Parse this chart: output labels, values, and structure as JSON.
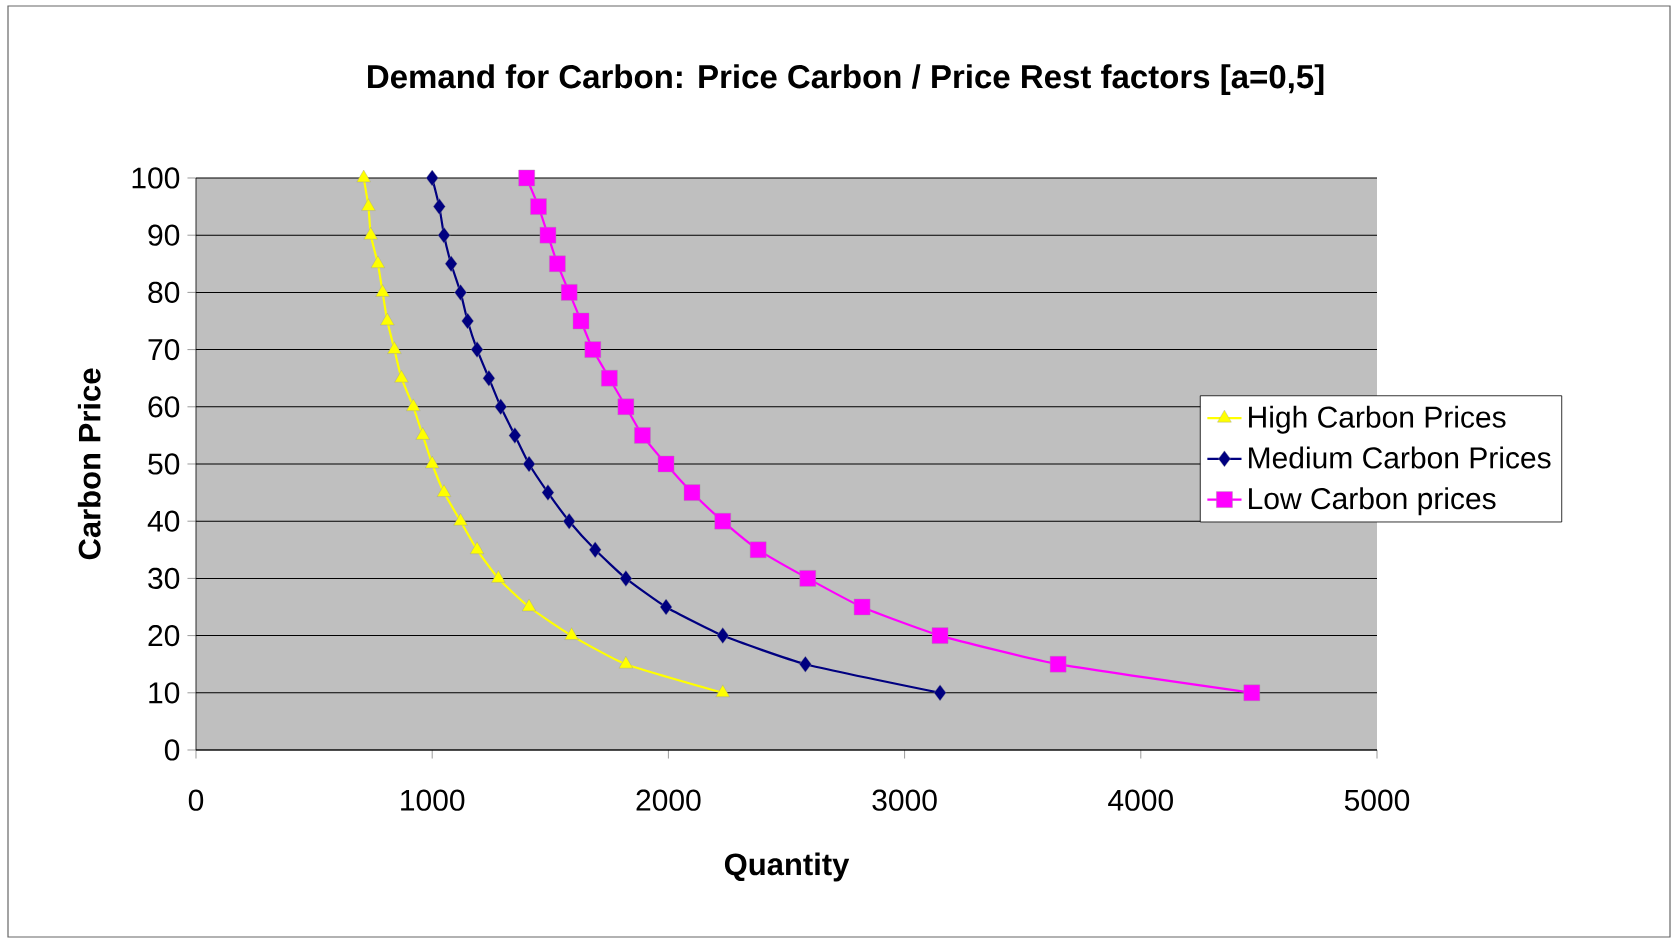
{
  "chart_data": {
    "type": "line",
    "title": "Demand for Carbon: Price Carbon / Price Rest factors [a=0,5]",
    "xlabel": "Quantity",
    "ylabel": "Carbon Price",
    "xlim": [
      0,
      5000
    ],
    "xticks": [
      0,
      1000,
      2000,
      3000,
      4000,
      5000
    ],
    "ylim": [
      0,
      100
    ],
    "yticks": [
      0,
      10,
      20,
      30,
      40,
      50,
      60,
      70,
      80,
      90,
      100
    ],
    "grid": "y",
    "legend": "right",
    "series": [
      {
        "name": "High Carbon Prices",
        "color": "#ffff00",
        "marker": "triangle",
        "x": [
          710,
          730,
          740,
          770,
          790,
          810,
          840,
          870,
          920,
          960,
          1000,
          1050,
          1120,
          1190,
          1280,
          1410,
          1590,
          1820,
          2230
        ],
        "values": [
          100,
          95,
          90,
          85,
          80,
          75,
          70,
          65,
          60,
          55,
          50,
          45,
          40,
          35,
          30,
          25,
          20,
          15,
          10
        ]
      },
      {
        "name": "Medium Carbon Prices",
        "color": "#000080",
        "marker": "diamond",
        "x": [
          1000,
          1030,
          1050,
          1080,
          1120,
          1150,
          1190,
          1240,
          1290,
          1350,
          1410,
          1490,
          1580,
          1690,
          1820,
          1990,
          2230,
          2580,
          3150
        ],
        "values": [
          100,
          95,
          90,
          85,
          80,
          75,
          70,
          65,
          60,
          55,
          50,
          45,
          40,
          35,
          30,
          25,
          20,
          15,
          10
        ]
      },
      {
        "name": "Low Carbon prices",
        "color": "#ff00ff",
        "marker": "square",
        "x": [
          1400,
          1450,
          1490,
          1530,
          1580,
          1630,
          1680,
          1750,
          1820,
          1890,
          1990,
          2100,
          2230,
          2380,
          2590,
          2820,
          3150,
          3650,
          4470
        ],
        "values": [
          100,
          95,
          90,
          85,
          80,
          75,
          70,
          65,
          60,
          55,
          50,
          45,
          40,
          35,
          30,
          25,
          20,
          15,
          10
        ]
      }
    ]
  }
}
